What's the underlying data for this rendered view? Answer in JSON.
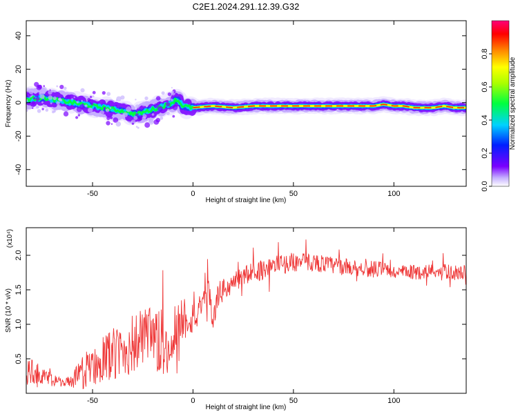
{
  "title": "C2E1.2024.291.12.39.G32",
  "chart_data": [
    {
      "type": "heatmap",
      "title": "C2E1.2024.291.12.39.G32",
      "xlabel": "Height of straight line (km)",
      "ylabel": "Frequency (Hz)",
      "xlim": [
        -83,
        136
      ],
      "ylim": [
        -50,
        49
      ],
      "x_ticks": [
        -50,
        0,
        50,
        100
      ],
      "y_ticks": [
        -40,
        -20,
        0,
        20,
        40
      ],
      "colorbar": {
        "label": "Normalized spectral amplitude",
        "range": [
          0,
          1
        ],
        "ticks": [
          0.0,
          0.2,
          0.4,
          0.6,
          0.8
        ]
      },
      "ridge": {
        "description_points_x": [
          -83,
          -75,
          -65,
          -55,
          -45,
          -35,
          -28,
          -20,
          -12,
          -8,
          -5,
          0,
          10,
          20,
          30,
          40,
          50,
          60,
          70,
          80,
          90,
          95,
          100,
          105,
          110,
          115,
          120,
          125,
          130,
          136
        ],
        "description_points_y": [
          2,
          3,
          1,
          -1,
          -3,
          -5,
          -7,
          -4,
          -1,
          2,
          -2,
          -3,
          -2,
          -3,
          -2,
          -2,
          -2,
          -2,
          -2,
          -2,
          -2,
          -1,
          -2,
          -2,
          -3,
          -3,
          -3,
          -2,
          -3,
          -3
        ]
      }
    },
    {
      "type": "line",
      "xlabel": "Height of straight line (km)",
      "ylabel": "SNR (10 * v/v)",
      "y_multiplier": "(x10⁴)",
      "xlim": [
        -83,
        136
      ],
      "ylim": [
        0,
        2.4
      ],
      "x_ticks": [
        -50,
        0,
        50,
        100
      ],
      "y_ticks": [
        0.5,
        1.0,
        1.5,
        2.0
      ],
      "series": [
        {
          "color": "#ee3333",
          "x": [
            -83,
            -80,
            -75,
            -70,
            -65,
            -60,
            -55,
            -50,
            -45,
            -40,
            -35,
            -30,
            -25,
            -20,
            -15,
            -12,
            -10,
            -5,
            0,
            5,
            8,
            10,
            12,
            15,
            20,
            25,
            30,
            40,
            50,
            60,
            70,
            80,
            90,
            95,
            100,
            110,
            120,
            130,
            136
          ],
          "y": [
            0.3,
            0.32,
            0.25,
            0.2,
            0.15,
            0.18,
            0.3,
            0.4,
            0.5,
            0.55,
            0.6,
            0.7,
            0.8,
            0.75,
            0.65,
            0.55,
            0.9,
            1.1,
            1.1,
            1.2,
            1.5,
            1.0,
            1.4,
            1.5,
            1.6,
            1.7,
            1.75,
            1.85,
            1.9,
            1.9,
            1.85,
            1.82,
            1.8,
            1.8,
            1.75,
            1.75,
            1.78,
            1.75,
            1.75
          ],
          "spread": [
            0.15,
            0.2,
            0.12,
            0.1,
            0.06,
            0.1,
            0.25,
            0.3,
            0.35,
            0.4,
            0.4,
            0.45,
            0.45,
            0.5,
            0.5,
            0.4,
            0.4,
            0.35,
            0.25,
            0.25,
            0.2,
            0.15,
            0.18,
            0.18,
            0.15,
            0.15,
            0.15,
            0.15,
            0.14,
            0.13,
            0.13,
            0.12,
            0.12,
            0.12,
            0.11,
            0.11,
            0.11,
            0.11,
            0.11
          ]
        }
      ]
    }
  ]
}
